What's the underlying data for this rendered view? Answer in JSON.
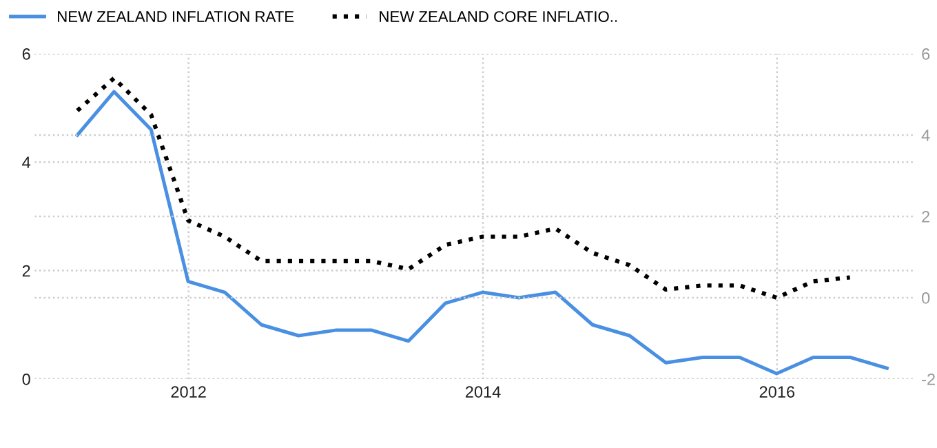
{
  "chart_data": {
    "type": "line",
    "x": [
      "2011-03-31",
      "2011-06-30",
      "2011-09-30",
      "2011-12-31",
      "2012-03-31",
      "2012-06-30",
      "2012-09-30",
      "2012-12-31",
      "2013-03-31",
      "2013-06-30",
      "2013-09-30",
      "2013-12-31",
      "2014-03-31",
      "2014-06-30",
      "2014-09-30",
      "2014-12-31",
      "2015-03-31",
      "2015-06-30",
      "2015-09-30",
      "2015-12-31",
      "2016-03-31",
      "2016-06-30",
      "2016-09-30"
    ],
    "series": [
      {
        "name": "NEW ZEALAND INFLATION RATE",
        "color": "#4a90e2",
        "line_style": "solid",
        "values": [
          4.5,
          5.3,
          4.6,
          1.8,
          1.6,
          1.0,
          0.8,
          0.9,
          0.9,
          0.7,
          1.4,
          1.6,
          1.5,
          1.6,
          1.0,
          0.8,
          0.3,
          0.4,
          0.4,
          0.1,
          0.4,
          0.4,
          0.2
        ]
      },
      {
        "name": "NEW ZEALAND CORE INFLATIO..",
        "color": "#000000",
        "line_style": "dotted",
        "axis": "y2",
        "values": [
          4.6,
          5.4,
          4.5,
          1.9,
          1.5,
          0.9,
          0.9,
          0.9,
          0.9,
          0.7,
          1.3,
          1.5,
          1.5,
          1.7,
          1.1,
          0.8,
          0.2,
          0.3,
          0.3,
          0.0,
          0.4,
          0.5,
          null
        ]
      }
    ],
    "xlim": [
      "2010-12-15",
      "2016-12-05"
    ],
    "xticks": [
      "2012",
      "2014",
      "2016"
    ],
    "ylim": [
      0,
      6
    ],
    "yticks": [
      0,
      2,
      4,
      6
    ],
    "y2lim": [
      -2,
      6
    ],
    "y2ticks": [
      -2,
      0,
      2,
      4,
      6
    ],
    "grid": true,
    "legend": "top left"
  }
}
